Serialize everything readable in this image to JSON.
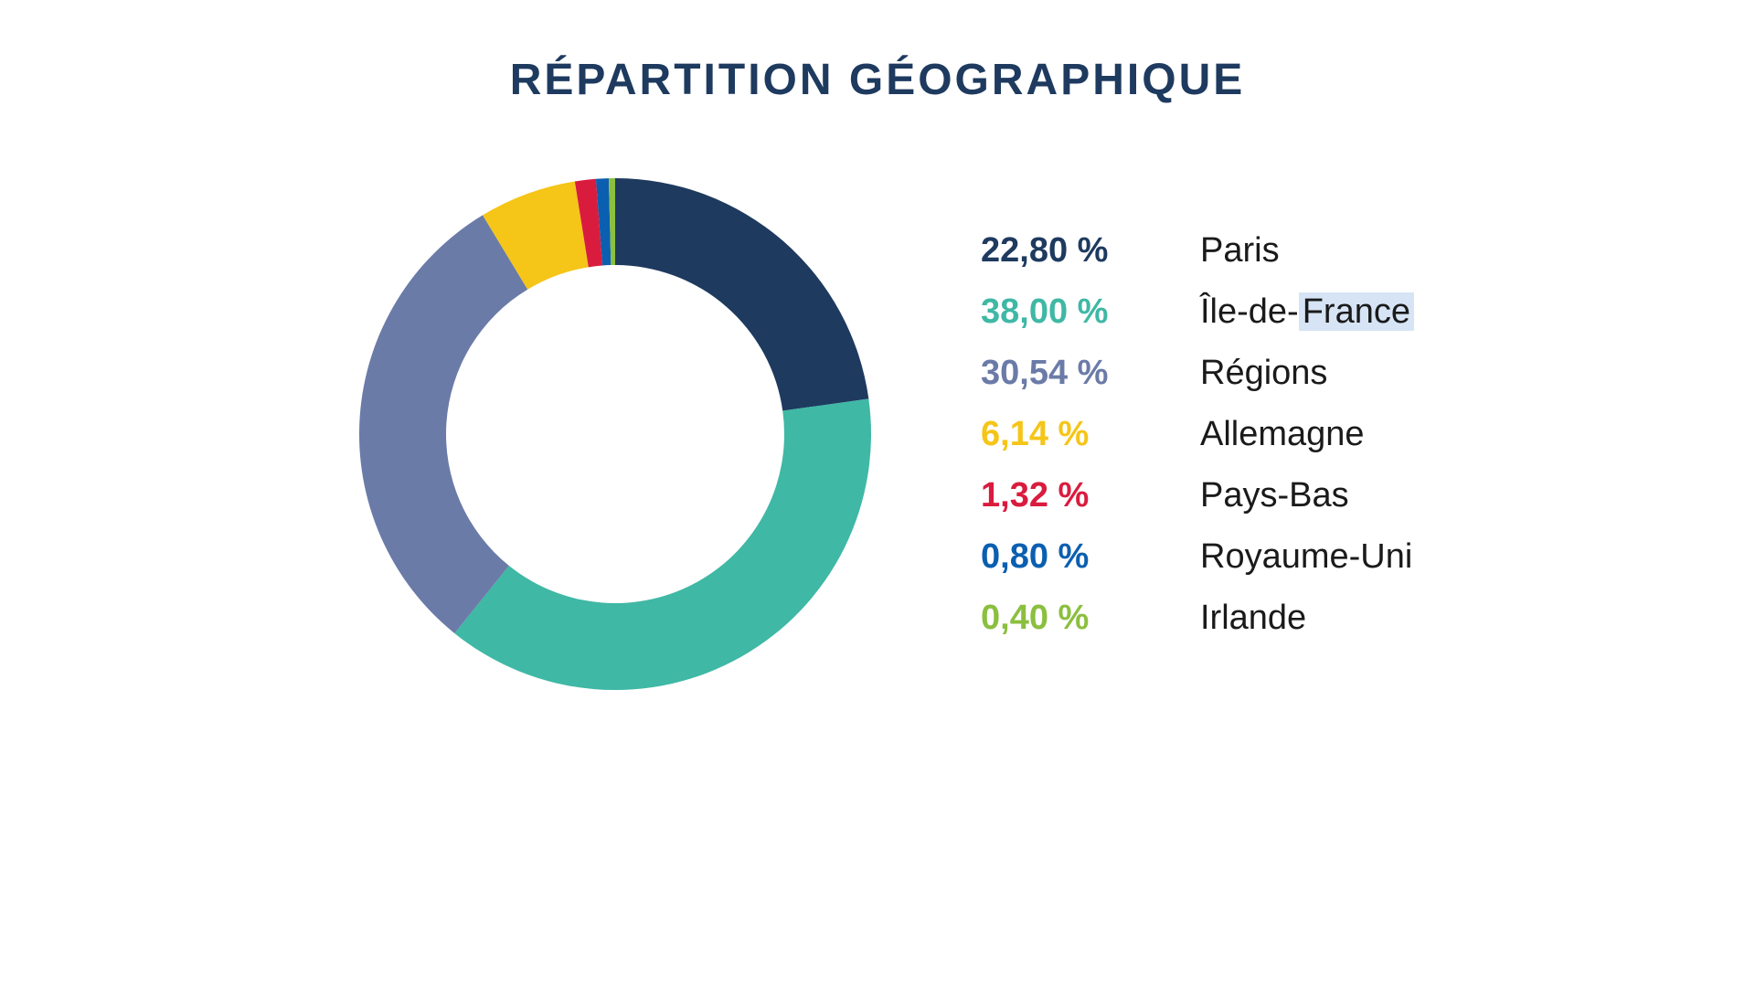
{
  "chart": {
    "type": "donut",
    "title": "RÉPARTITION GÉOGRAPHIQUE",
    "title_color": "#1e3a5f",
    "title_fontsize": 48,
    "background_color": "#ffffff",
    "donut_outer_radius": 280,
    "donut_inner_radius": 185,
    "start_angle_deg": -90,
    "slices": [
      {
        "label": "Paris",
        "value": 22.8,
        "percent_text": "22,80 %",
        "color": "#1e3a5f"
      },
      {
        "label": "Île-de-France",
        "value": 38.0,
        "percent_text": "38,00 %",
        "color": "#3fb8a5",
        "label_highlight_part": "France"
      },
      {
        "label": "Régions",
        "value": 30.54,
        "percent_text": "30,54 %",
        "color": "#6b7ba8"
      },
      {
        "label": "Allemagne",
        "value": 6.14,
        "percent_text": "6,14 %",
        "color": "#f5c518"
      },
      {
        "label": "Pays-Bas",
        "value": 1.32,
        "percent_text": "1,32 %",
        "color": "#d91c3e"
      },
      {
        "label": "Royaume-Uni",
        "value": 0.8,
        "percent_text": "0,80 %",
        "color": "#0b5fb0"
      },
      {
        "label": "Irlande",
        "value": 0.4,
        "percent_text": "0,40 %",
        "color": "#8bbf3f"
      }
    ],
    "legend_label_color": "#1a1a1a",
    "legend_fontsize": 38,
    "highlight_bg": "#d6e4f5"
  }
}
